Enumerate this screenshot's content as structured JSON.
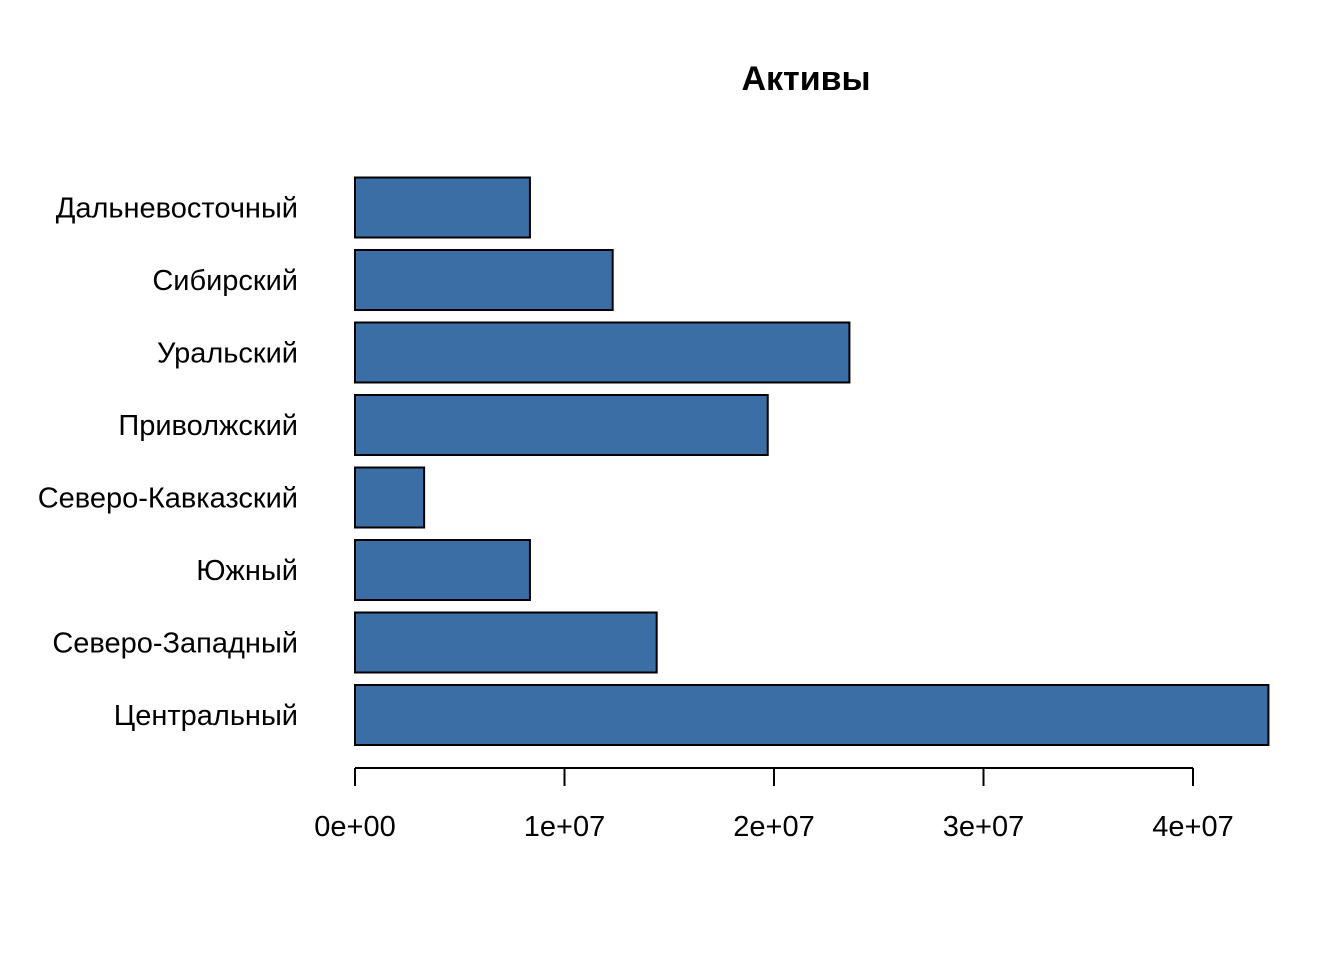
{
  "chart_data": {
    "type": "bar",
    "orientation": "horizontal",
    "title": "Активы",
    "xlabel": "",
    "ylabel": "",
    "categories": [
      "Центральный",
      "Северо-Западный",
      "Южный",
      "Северо-Кавказский",
      "Приволжский",
      "Уральский",
      "Сибирский",
      "Дальневосточный"
    ],
    "values": [
      43600000,
      14400000,
      8350000,
      3300000,
      19700000,
      23600000,
      12300000,
      8350000
    ],
    "xlim": [
      0,
      40000000
    ],
    "xticks": [
      0,
      10000000,
      20000000,
      30000000,
      40000000
    ],
    "xtick_labels": [
      "0e+00",
      "1e+07",
      "2e+07",
      "3e+07",
      "4e+07"
    ],
    "grid": false,
    "legend": "none",
    "colors": {
      "bar_fill": "#3A6EA5",
      "bar_stroke": "#000000",
      "axis": "#000000"
    }
  }
}
